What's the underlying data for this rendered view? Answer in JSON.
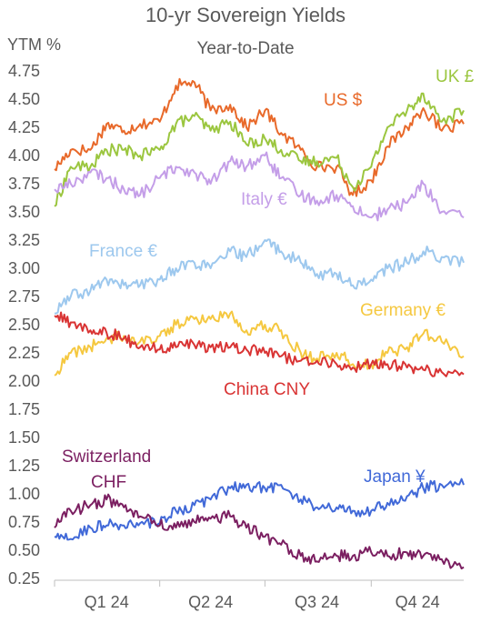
{
  "chart_data": {
    "type": "line",
    "title": "10-yr Sovereign Yields",
    "subtitle": "Year-to-Date",
    "ylabel": "YTM %",
    "xlabel": "",
    "ylim": [
      0.25,
      4.75
    ],
    "yticks": [
      "4.75",
      "4.50",
      "4.25",
      "4.00",
      "3.75",
      "3.50",
      "3.25",
      "3.00",
      "2.75",
      "2.50",
      "2.25",
      "2.00",
      "1.75",
      "1.50",
      "1.25",
      "1.00",
      "0.75",
      "0.50",
      "0.25"
    ],
    "x_range": [
      "2024-01-01",
      "2024-12-20"
    ],
    "xticks": [
      {
        "label": "Q1 24",
        "center": "2024-02-15"
      },
      {
        "label": "Q2 24",
        "center": "2024-05-15"
      },
      {
        "label": "Q3 24",
        "center": "2024-08-15"
      },
      {
        "label": "Q4 24",
        "center": "2024-11-10"
      }
    ],
    "quarter_boundaries": [
      "2024-01-01",
      "2024-04-01",
      "2024-07-01",
      "2024-10-01"
    ],
    "grid": false,
    "legend": "inline labels",
    "series": [
      {
        "name": "US $",
        "color": "#E8692A",
        "x": [
          "2024-01-01",
          "2024-01-15",
          "2024-02-01",
          "2024-02-15",
          "2024-03-01",
          "2024-03-15",
          "2024-04-01",
          "2024-04-15",
          "2024-05-01",
          "2024-05-15",
          "2024-06-01",
          "2024-06-15",
          "2024-07-01",
          "2024-07-15",
          "2024-08-01",
          "2024-08-15",
          "2024-09-01",
          "2024-09-15",
          "2024-10-01",
          "2024-10-15",
          "2024-11-01",
          "2024-11-15",
          "2024-12-01",
          "2024-12-20"
        ],
        "y": [
          3.88,
          4.05,
          4.05,
          4.28,
          4.22,
          4.28,
          4.3,
          4.62,
          4.65,
          4.4,
          4.45,
          4.25,
          4.4,
          4.2,
          4.05,
          3.9,
          3.9,
          3.65,
          3.78,
          4.08,
          4.25,
          4.42,
          4.22,
          4.28
        ]
      },
      {
        "name": "UK £",
        "color": "#9BC63F",
        "x": [
          "2024-01-01",
          "2024-01-15",
          "2024-02-01",
          "2024-02-15",
          "2024-03-01",
          "2024-03-15",
          "2024-04-01",
          "2024-04-15",
          "2024-05-01",
          "2024-05-15",
          "2024-06-01",
          "2024-06-15",
          "2024-07-01",
          "2024-07-15",
          "2024-08-01",
          "2024-08-15",
          "2024-09-01",
          "2024-09-15",
          "2024-10-01",
          "2024-10-15",
          "2024-11-01",
          "2024-11-15",
          "2024-12-01",
          "2024-12-20"
        ],
        "y": [
          3.55,
          3.9,
          3.9,
          4.05,
          4.05,
          4.0,
          4.05,
          4.28,
          4.35,
          4.22,
          4.3,
          4.1,
          4.15,
          4.05,
          3.95,
          3.95,
          3.98,
          3.72,
          3.9,
          4.25,
          4.4,
          4.55,
          4.3,
          4.4
        ]
      },
      {
        "name": "Italy €",
        "color": "#C49EE8",
        "x": [
          "2024-01-01",
          "2024-01-15",
          "2024-02-01",
          "2024-02-15",
          "2024-03-01",
          "2024-03-15",
          "2024-04-01",
          "2024-04-15",
          "2024-05-01",
          "2024-05-15",
          "2024-06-01",
          "2024-06-15",
          "2024-07-01",
          "2024-07-15",
          "2024-08-01",
          "2024-08-15",
          "2024-09-01",
          "2024-09-15",
          "2024-10-01",
          "2024-10-15",
          "2024-11-01",
          "2024-11-15",
          "2024-12-01",
          "2024-12-20"
        ],
        "y": [
          3.7,
          3.75,
          3.85,
          3.8,
          3.7,
          3.65,
          3.8,
          3.9,
          3.85,
          3.75,
          3.95,
          3.9,
          4.0,
          3.8,
          3.65,
          3.6,
          3.65,
          3.55,
          3.45,
          3.52,
          3.58,
          3.75,
          3.5,
          3.45
        ]
      },
      {
        "name": "France €",
        "color": "#9DC8EE",
        "x": [
          "2024-01-01",
          "2024-01-15",
          "2024-02-01",
          "2024-02-15",
          "2024-03-01",
          "2024-03-15",
          "2024-04-01",
          "2024-04-15",
          "2024-05-01",
          "2024-05-15",
          "2024-06-01",
          "2024-06-15",
          "2024-07-01",
          "2024-07-15",
          "2024-08-01",
          "2024-08-15",
          "2024-09-01",
          "2024-09-15",
          "2024-10-01",
          "2024-10-15",
          "2024-11-01",
          "2024-11-15",
          "2024-12-01",
          "2024-12-20"
        ],
        "y": [
          2.6,
          2.75,
          2.8,
          2.9,
          2.85,
          2.85,
          2.9,
          3.0,
          3.05,
          3.0,
          3.15,
          3.1,
          3.25,
          3.15,
          3.05,
          2.95,
          2.95,
          2.85,
          2.9,
          3.0,
          3.05,
          3.15,
          3.1,
          3.05
        ]
      },
      {
        "name": "Germany €",
        "color": "#F5C840",
        "x": [
          "2024-01-01",
          "2024-01-15",
          "2024-02-01",
          "2024-02-15",
          "2024-03-01",
          "2024-03-15",
          "2024-04-01",
          "2024-04-15",
          "2024-05-01",
          "2024-05-15",
          "2024-06-01",
          "2024-06-15",
          "2024-07-01",
          "2024-07-15",
          "2024-08-01",
          "2024-08-15",
          "2024-09-01",
          "2024-09-15",
          "2024-10-01",
          "2024-10-15",
          "2024-11-01",
          "2024-11-15",
          "2024-12-01",
          "2024-12-20"
        ],
        "y": [
          2.05,
          2.25,
          2.3,
          2.38,
          2.4,
          2.35,
          2.4,
          2.5,
          2.55,
          2.55,
          2.6,
          2.45,
          2.5,
          2.45,
          2.25,
          2.2,
          2.25,
          2.15,
          2.15,
          2.25,
          2.3,
          2.42,
          2.35,
          2.22
        ]
      },
      {
        "name": "China CNY",
        "color": "#D93434",
        "x": [
          "2024-01-01",
          "2024-01-15",
          "2024-02-01",
          "2024-02-15",
          "2024-03-01",
          "2024-03-15",
          "2024-04-01",
          "2024-04-15",
          "2024-05-01",
          "2024-05-15",
          "2024-06-01",
          "2024-06-15",
          "2024-07-01",
          "2024-07-15",
          "2024-08-01",
          "2024-08-15",
          "2024-09-01",
          "2024-09-15",
          "2024-10-01",
          "2024-10-15",
          "2024-11-01",
          "2024-11-15",
          "2024-12-01",
          "2024-12-20"
        ],
        "y": [
          2.58,
          2.52,
          2.45,
          2.43,
          2.38,
          2.3,
          2.28,
          2.3,
          2.32,
          2.3,
          2.3,
          2.28,
          2.25,
          2.22,
          2.18,
          2.18,
          2.15,
          2.12,
          2.15,
          2.15,
          2.12,
          2.1,
          2.08,
          2.06
        ]
      },
      {
        "name": "Japan ¥",
        "color": "#4169D8",
        "x": [
          "2024-01-01",
          "2024-01-15",
          "2024-02-01",
          "2024-02-15",
          "2024-03-01",
          "2024-03-15",
          "2024-04-01",
          "2024-04-15",
          "2024-05-01",
          "2024-05-15",
          "2024-06-01",
          "2024-06-15",
          "2024-07-01",
          "2024-07-15",
          "2024-08-01",
          "2024-08-15",
          "2024-09-01",
          "2024-09-15",
          "2024-10-01",
          "2024-10-15",
          "2024-11-01",
          "2024-11-15",
          "2024-12-01",
          "2024-12-20"
        ],
        "y": [
          0.62,
          0.6,
          0.7,
          0.72,
          0.72,
          0.74,
          0.74,
          0.85,
          0.9,
          0.95,
          1.05,
          1.08,
          1.05,
          1.08,
          0.95,
          0.88,
          0.88,
          0.85,
          0.85,
          0.92,
          0.98,
          1.05,
          1.08,
          1.08
        ]
      },
      {
        "name": "Switzerland CHF",
        "color": "#7B1F61",
        "x": [
          "2024-01-01",
          "2024-01-15",
          "2024-02-01",
          "2024-02-15",
          "2024-03-01",
          "2024-03-15",
          "2024-04-01",
          "2024-04-15",
          "2024-05-01",
          "2024-05-15",
          "2024-06-01",
          "2024-06-15",
          "2024-07-01",
          "2024-07-15",
          "2024-08-01",
          "2024-08-15",
          "2024-09-01",
          "2024-09-15",
          "2024-10-01",
          "2024-10-15",
          "2024-11-01",
          "2024-11-15",
          "2024-12-01",
          "2024-12-20"
        ],
        "y": [
          0.7,
          0.85,
          0.9,
          0.95,
          0.88,
          0.8,
          0.72,
          0.7,
          0.75,
          0.78,
          0.8,
          0.7,
          0.62,
          0.55,
          0.45,
          0.4,
          0.45,
          0.45,
          0.48,
          0.45,
          0.48,
          0.45,
          0.42,
          0.35
        ]
      }
    ],
    "labels": {
      "us": "US $",
      "uk": "UK £",
      "italy": "Italy €",
      "france": "France €",
      "germany": "Germany €",
      "china": "China CNY",
      "japan": "Japan ¥",
      "switzerland_line1": "Switzerland",
      "switzerland_line2": "CHF"
    }
  }
}
